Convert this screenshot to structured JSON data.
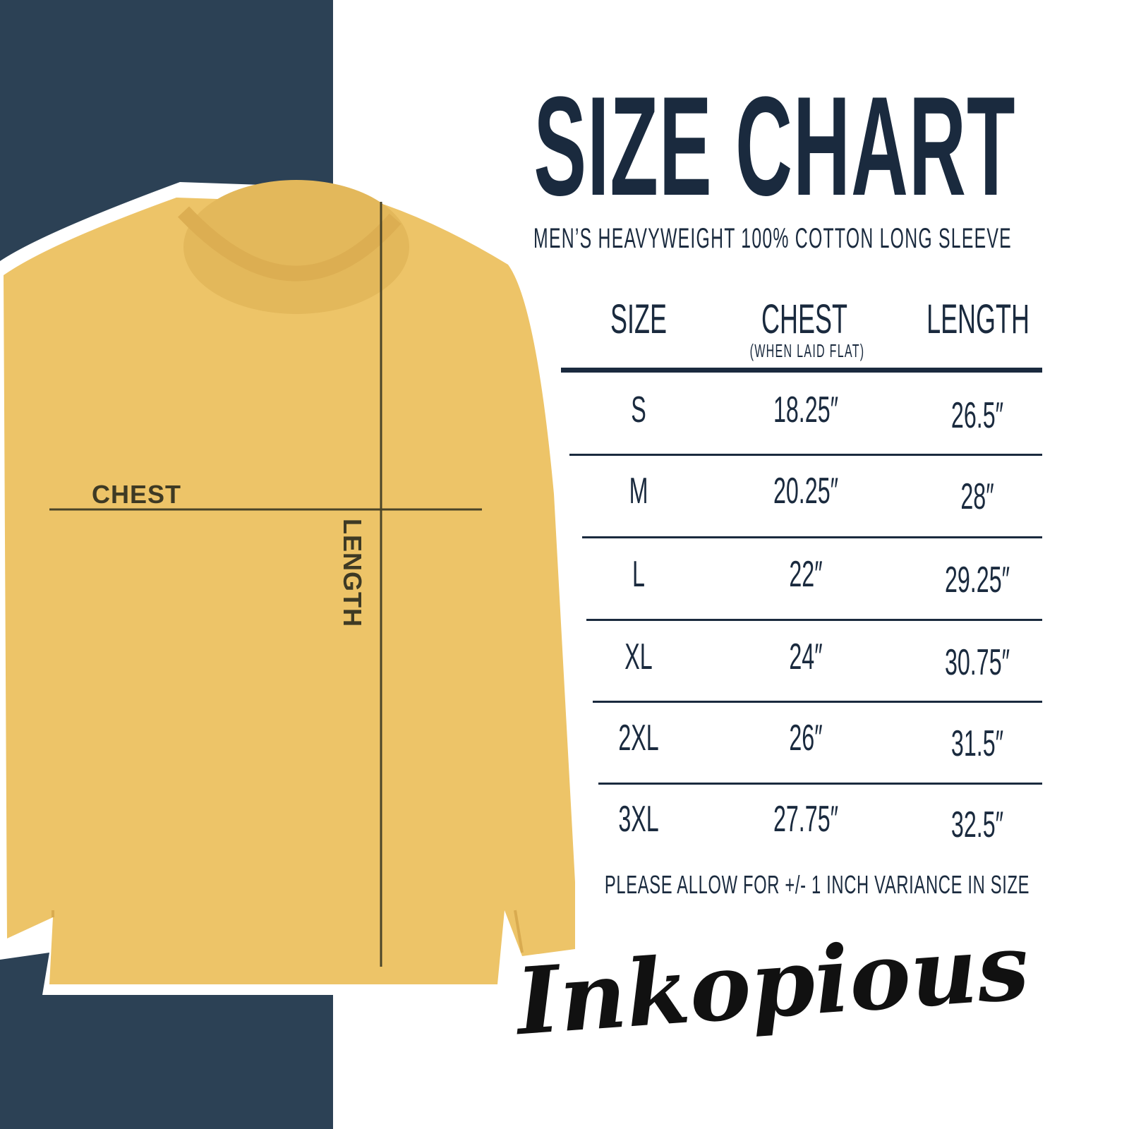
{
  "colors": {
    "panel": "#2c4155",
    "shirt": "#edc468",
    "text": "#1a2a3e"
  },
  "title": "SIZE CHART",
  "subtitle": "MEN’S HEAVYWEIGHT 100% COTTON LONG SLEEVE",
  "diagram": {
    "chest_label": "CHEST",
    "length_label": "LENGTH"
  },
  "table": {
    "headers": [
      {
        "label": "SIZE"
      },
      {
        "label": "CHEST",
        "sub": "(WHEN LAID FLAT)"
      },
      {
        "label": "LENGTH"
      }
    ],
    "rows": [
      [
        "S",
        "18.25″",
        "26.5″"
      ],
      [
        "M",
        "20.25″",
        "28″"
      ],
      [
        "L",
        "22″",
        "29.25″"
      ],
      [
        "XL",
        "24″",
        "30.75″"
      ],
      [
        "2XL",
        "26″",
        "31.5″"
      ],
      [
        "3XL",
        "27.75″",
        "32.5″"
      ]
    ]
  },
  "note": "PLEASE ALLOW FOR +/- 1 INCH VARIANCE IN SIZE",
  "logo": "Inkopious"
}
